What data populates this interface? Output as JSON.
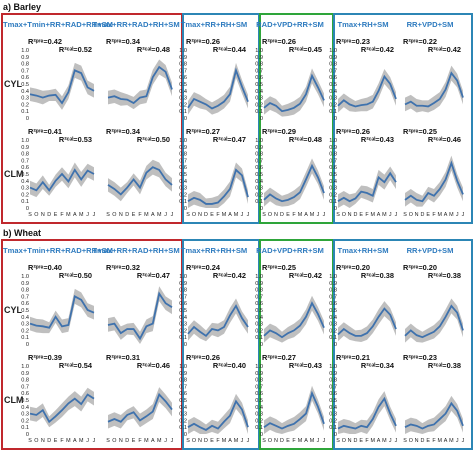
{
  "sections": [
    {
      "label": "a) Barley",
      "headers": [
        "Tmax+Tmin+RR+RAD+RH+SM",
        "Tmax+RR+RAD+RH+SM",
        "Tmax+RR+RH+SM",
        "RAD+VPD+RR+SM",
        "Tmax+RH+SM",
        "RR+VPD+SM"
      ],
      "rows": [
        {
          "label": "CYL",
          "stats": [
            [
              "0.42",
              "0.52"
            ],
            [
              "0.34",
              "0.48"
            ],
            [
              "0.26",
              "0.44"
            ],
            [
              "0.26",
              "0.45"
            ],
            [
              "0.23",
              "0.42"
            ],
            [
              "0.22",
              "0.42"
            ]
          ]
        },
        {
          "label": "CLM",
          "stats": [
            [
              "0.41",
              "0.53"
            ],
            [
              "0.34",
              "0.50"
            ],
            [
              "0.27",
              "0.47"
            ],
            [
              "0.29",
              "0.48"
            ],
            [
              "0.26",
              "0.43"
            ],
            [
              "0.25",
              "0.46"
            ]
          ]
        }
      ]
    },
    {
      "label": "b) Wheat",
      "headers": [
        "Tmax+Tmin+RR+RAD+RH+SM",
        "Tmax+RR+RAD+RH+SM",
        "Tmax+RR+RH+SM",
        "RAD+VPD+RR+SM",
        "Tmax+RH+SM",
        "RR+VPD+SM"
      ],
      "rows": [
        {
          "label": "CYL",
          "stats": [
            [
              "0.40",
              "0.50"
            ],
            [
              "0.32",
              "0.47"
            ],
            [
              "0.24",
              "0.42"
            ],
            [
              "0.25",
              "0.42"
            ],
            [
              "0.20",
              "0.38"
            ],
            [
              "0.20",
              "0.38"
            ]
          ]
        },
        {
          "label": "CLM",
          "stats": [
            [
              "0.39",
              "0.54"
            ],
            [
              "0.31",
              "0.46"
            ],
            [
              "0.26",
              "0.40"
            ],
            [
              "0.27",
              "0.43"
            ],
            [
              "0.21",
              "0.34"
            ],
            [
              "0.23",
              "0.38"
            ]
          ]
        }
      ]
    }
  ],
  "stat_labels": {
    "r2_pred": "R²ᵖʳᵉ=",
    "r2_cal": "R²ᶜᵃˡ="
  },
  "chart_data": {
    "type": "line",
    "x": [
      "S",
      "O",
      "N",
      "D",
      "E",
      "F",
      "M",
      "A",
      "M",
      "J",
      "J"
    ],
    "ylim": [
      0,
      1.0
    ],
    "yticks": [
      "0",
      "0.1",
      "0.2",
      "0.3",
      "0.4",
      "0.5",
      "0.6",
      "0.7",
      "0.8",
      "0.9",
      "1.0"
    ],
    "colors": {
      "line": "#3f72ad",
      "band": "#b4b4b4",
      "barley_frame": "#c0282d",
      "wheat_frame": "#c0282d",
      "model_frame": "#2c86b5",
      "highlight_frame": "#2ea53a"
    },
    "panels": {
      "barley": {
        "CYL": [
          [
            0.35,
            0.33,
            0.3,
            0.33,
            0.34,
            0.22,
            0.38,
            0.7,
            0.66,
            0.45,
            0.4
          ],
          [
            0.3,
            0.32,
            0.28,
            0.27,
            0.22,
            0.3,
            0.32,
            0.6,
            0.75,
            0.68,
            0.42
          ],
          [
            0.15,
            0.28,
            0.24,
            0.2,
            0.14,
            0.18,
            0.24,
            0.35,
            0.7,
            0.46,
            0.24
          ],
          [
            0.15,
            0.22,
            0.18,
            0.1,
            0.12,
            0.15,
            0.21,
            0.35,
            0.62,
            0.45,
            0.26
          ],
          [
            0.18,
            0.26,
            0.2,
            0.17,
            0.19,
            0.2,
            0.24,
            0.4,
            0.61,
            0.5,
            0.28
          ],
          [
            0.2,
            0.24,
            0.18,
            0.18,
            0.17,
            0.22,
            0.28,
            0.42,
            0.66,
            0.55,
            0.3
          ]
        ],
        "CLM": [
          [
            0.3,
            0.26,
            0.38,
            0.26,
            0.4,
            0.5,
            0.39,
            0.56,
            0.42,
            0.55,
            0.5
          ],
          [
            0.34,
            0.28,
            0.2,
            0.3,
            0.42,
            0.3,
            0.52,
            0.6,
            0.56,
            0.42,
            0.34
          ],
          [
            0.1,
            0.15,
            0.12,
            0.06,
            0.06,
            0.08,
            0.17,
            0.28,
            0.56,
            0.48,
            0.16
          ],
          [
            0.12,
            0.2,
            0.14,
            0.1,
            0.12,
            0.16,
            0.23,
            0.42,
            0.62,
            0.45,
            0.22
          ],
          [
            0.1,
            0.15,
            0.1,
            0.14,
            0.24,
            0.22,
            0.18,
            0.45,
            0.38,
            0.51,
            0.38
          ],
          [
            0.12,
            0.18,
            0.12,
            0.1,
            0.22,
            0.18,
            0.28,
            0.42,
            0.66,
            0.4,
            0.2
          ]
        ]
      },
      "wheat": {
        "CYL": [
          [
            0.3,
            0.27,
            0.26,
            0.24,
            0.4,
            0.26,
            0.28,
            0.7,
            0.65,
            0.5,
            0.46
          ],
          [
            0.28,
            0.3,
            0.16,
            0.22,
            0.22,
            0.08,
            0.26,
            0.3,
            0.74,
            0.6,
            0.54
          ],
          [
            0.15,
            0.25,
            0.18,
            0.12,
            0.22,
            0.2,
            0.25,
            0.42,
            0.56,
            0.38,
            0.25
          ],
          [
            0.12,
            0.2,
            0.16,
            0.1,
            0.16,
            0.2,
            0.27,
            0.4,
            0.6,
            0.44,
            0.24
          ],
          [
            0.14,
            0.22,
            0.16,
            0.12,
            0.12,
            0.16,
            0.26,
            0.4,
            0.52,
            0.43,
            0.22
          ],
          [
            0.12,
            0.2,
            0.13,
            0.1,
            0.14,
            0.18,
            0.26,
            0.4,
            0.56,
            0.46,
            0.2
          ]
        ],
        "CLM": [
          [
            0.3,
            0.28,
            0.35,
            0.18,
            0.26,
            0.35,
            0.45,
            0.52,
            0.44,
            0.58,
            0.52
          ],
          [
            0.18,
            0.22,
            0.18,
            0.28,
            0.32,
            0.2,
            0.26,
            0.33,
            0.58,
            0.48,
            0.36
          ],
          [
            0.1,
            0.15,
            0.1,
            0.06,
            0.12,
            0.08,
            0.18,
            0.27,
            0.48,
            0.36,
            0.1
          ],
          [
            0.1,
            0.16,
            0.12,
            0.08,
            0.12,
            0.15,
            0.22,
            0.3,
            0.6,
            0.4,
            0.15
          ],
          [
            0.08,
            0.12,
            0.1,
            0.08,
            0.12,
            0.1,
            0.22,
            0.4,
            0.52,
            0.3,
            0.12
          ],
          [
            0.1,
            0.14,
            0.12,
            0.08,
            0.12,
            0.14,
            0.22,
            0.3,
            0.45,
            0.34,
            0.12
          ]
        ]
      }
    },
    "band_halfwidth": [
      0.1,
      0.1,
      0.1,
      0.08,
      0.09,
      0.1,
      0.1,
      0.11,
      0.11,
      0.1,
      0.1
    ]
  }
}
